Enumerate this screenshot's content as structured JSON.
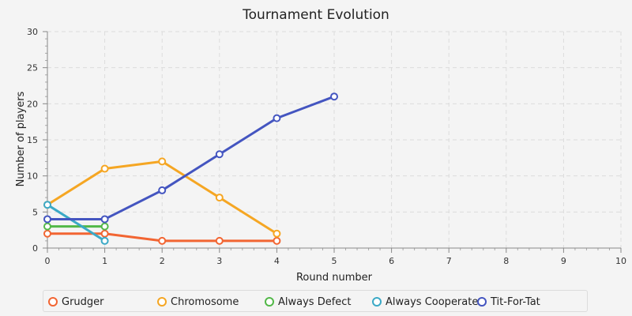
{
  "chart_data": {
    "type": "line",
    "title": "Tournament Evolution",
    "xlabel": "Round number",
    "ylabel": "Number of players",
    "xlim": [
      0,
      10
    ],
    "ylim": [
      0,
      30
    ],
    "x_ticks": [
      "0",
      "1",
      "2",
      "3",
      "4",
      "5",
      "6",
      "7",
      "8",
      "9",
      "10"
    ],
    "y_ticks": [
      "0",
      "5",
      "10",
      "15",
      "20",
      "25",
      "30"
    ],
    "grid": true,
    "legend_position": "bottom",
    "series": [
      {
        "name": "Grudger",
        "color": "#f26532",
        "x": [
          0,
          1,
          2,
          3,
          4
        ],
        "y": [
          2,
          2,
          1,
          1,
          1
        ]
      },
      {
        "name": "Chromosome",
        "color": "#f5a623",
        "x": [
          0,
          1,
          2,
          3,
          4
        ],
        "y": [
          6,
          11,
          12,
          7,
          2
        ]
      },
      {
        "name": "Always Defect",
        "color": "#52b848",
        "x": [
          0,
          1
        ],
        "y": [
          3,
          3
        ]
      },
      {
        "name": "Always Cooperate",
        "color": "#3ba9c6",
        "x": [
          0,
          1
        ],
        "y": [
          6,
          1
        ]
      },
      {
        "name": "Tit-For-Tat",
        "color": "#4455c0",
        "x": [
          0,
          1,
          2,
          3,
          4,
          5
        ],
        "y": [
          4,
          4,
          8,
          13,
          18,
          21
        ]
      }
    ]
  }
}
